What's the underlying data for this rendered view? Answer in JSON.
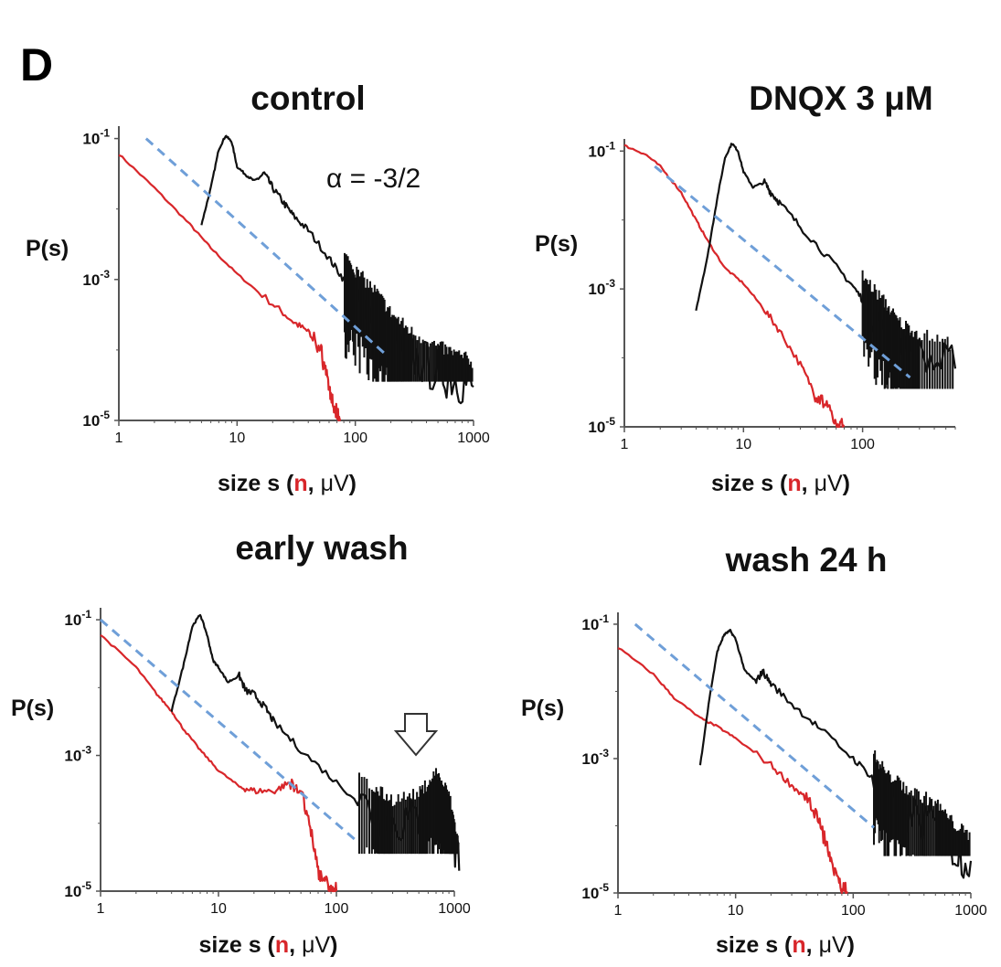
{
  "panel_label": "D",
  "colors": {
    "neurons": "#d8262a",
    "microvolts": "#111111",
    "power_law": "#6f9fd8",
    "axis": "#555555"
  },
  "chart_data": [
    {
      "type": "line",
      "title": "control",
      "ylabel": "P(s)",
      "xlabel_parts": [
        "size s (",
        "n",
        ", ",
        "μV",
        ")"
      ],
      "xscale": "log",
      "yscale": "log",
      "xlim": [
        1,
        1000
      ],
      "ylim": [
        1e-05,
        0.15
      ],
      "xticks": [
        "1",
        "10",
        "100",
        "1000"
      ],
      "yticks": [
        {
          "base": "10",
          "exp": "-1"
        },
        {
          "base": "10",
          "exp": "-3"
        },
        {
          "base": "10",
          "exp": "-5"
        }
      ],
      "annotation": "α = -3/2",
      "series": [
        {
          "key": "n",
          "x": [
            1,
            2,
            4,
            6,
            10,
            20,
            30,
            40,
            50,
            55,
            60,
            65,
            70,
            75
          ],
          "y": [
            0.06,
            0.02,
            0.006,
            0.0028,
            0.0012,
            0.00045,
            0.00025,
            0.00018,
            0.00011,
            6e-05,
            3e-05,
            1.5e-05,
            1.2e-05,
            1e-05
          ]
        },
        {
          "key": "uV",
          "noisy_from": 80,
          "x": [
            5,
            6,
            7,
            8,
            9,
            10,
            12,
            14,
            17,
            20,
            25,
            30,
            40,
            60,
            80,
            100,
            150,
            200,
            300,
            500,
            700,
            1000
          ],
          "y": [
            0.006,
            0.02,
            0.07,
            0.11,
            0.09,
            0.04,
            0.03,
            0.025,
            0.032,
            0.02,
            0.012,
            0.008,
            0.005,
            0.002,
            0.001,
            0.0006,
            0.0003,
            0.00015,
            8e-05,
            5e-05,
            4e-05,
            3e-05
          ]
        },
        {
          "key": "power_law",
          "x": [
            1.7,
            180
          ],
          "y": [
            0.1,
            8.7e-05
          ]
        }
      ]
    },
    {
      "type": "line",
      "title": "DNQX 3 μM",
      "ylabel": "P(s)",
      "xlabel_parts": [
        "size s (",
        "n",
        ", ",
        "μV",
        ")"
      ],
      "xscale": "log",
      "yscale": "log",
      "xlim": [
        1,
        600
      ],
      "ylim": [
        1e-05,
        0.15
      ],
      "xticks": [
        "1",
        "10",
        "100"
      ],
      "yticks": [
        {
          "base": "10",
          "exp": "-1"
        },
        {
          "base": "10",
          "exp": "-3"
        },
        {
          "base": "10",
          "exp": "-5"
        }
      ],
      "annotation": "",
      "series": [
        {
          "key": "n",
          "x": [
            1,
            1.5,
            2,
            3,
            4,
            5,
            7,
            10,
            15,
            20,
            30,
            40,
            50,
            60,
            70
          ],
          "y": [
            0.12,
            0.09,
            0.06,
            0.025,
            0.01,
            0.005,
            0.002,
            0.0012,
            0.0005,
            0.00025,
            8e-05,
            3e-05,
            2e-05,
            1e-05,
            1e-05
          ]
        },
        {
          "key": "uV",
          "noisy_from": 100,
          "x": [
            4,
            5,
            6,
            7,
            8,
            9,
            10,
            12,
            15,
            17,
            20,
            30,
            50,
            80,
            100,
            150,
            200,
            300,
            600
          ],
          "y": [
            0.0005,
            0.003,
            0.02,
            0.08,
            0.13,
            0.1,
            0.05,
            0.03,
            0.035,
            0.025,
            0.018,
            0.008,
            0.003,
            0.0012,
            0.0007,
            0.0003,
            0.00015,
            0.0001,
            7e-05
          ]
        },
        {
          "key": "power_law",
          "x": [
            1.8,
            250
          ],
          "y": [
            0.06,
            5.2e-05
          ]
        }
      ]
    },
    {
      "type": "line",
      "title": "early wash",
      "ylabel": "P(s)",
      "xlabel_parts": [
        "size s (",
        "n",
        ", ",
        "μV",
        ")"
      ],
      "xscale": "log",
      "yscale": "log",
      "xlim": [
        1,
        1000
      ],
      "ylim": [
        1e-05,
        0.15
      ],
      "xticks": [
        "1",
        "10",
        "100",
        "1000"
      ],
      "yticks": [
        {
          "base": "10",
          "exp": "-1"
        },
        {
          "base": "10",
          "exp": "-3"
        },
        {
          "base": "10",
          "exp": "-5"
        }
      ],
      "annotation": "",
      "series": [
        {
          "key": "n",
          "x": [
            1,
            2,
            3,
            4,
            5,
            7,
            10,
            15,
            20,
            30,
            40,
            50,
            60,
            70,
            80,
            90,
            100
          ],
          "y": [
            0.06,
            0.02,
            0.008,
            0.0045,
            0.0025,
            0.0012,
            0.0006,
            0.00035,
            0.0003,
            0.0003,
            0.0004,
            0.0003,
            8e-05,
            2e-05,
            1.5e-05,
            1e-05,
            1e-05
          ]
        },
        {
          "key": "uV",
          "noisy_from": 150,
          "x": [
            4,
            5,
            6,
            7,
            8,
            9,
            10,
            12,
            15,
            17,
            20,
            25,
            30,
            50,
            100,
            200,
            300,
            500,
            700,
            900,
            1100
          ],
          "y": [
            0.0045,
            0.02,
            0.08,
            0.12,
            0.06,
            0.025,
            0.02,
            0.012,
            0.015,
            0.009,
            0.008,
            0.005,
            0.003,
            0.0012,
            0.0004,
            0.00015,
            0.0001,
            0.00012,
            0.00025,
            0.00012,
            2e-05
          ]
        },
        {
          "key": "power_law",
          "x": [
            1,
            150
          ],
          "y": [
            0.1,
            5.4e-05
          ]
        }
      ],
      "marker": "hollow-down-arrow"
    },
    {
      "type": "line",
      "title": "wash 24 h",
      "ylabel": "P(s)",
      "xlabel_parts": [
        "size s (",
        "n",
        ", ",
        "μV",
        ")"
      ],
      "xscale": "log",
      "yscale": "log",
      "xlim": [
        1,
        1000
      ],
      "ylim": [
        1e-05,
        0.15
      ],
      "xticks": [
        "1",
        "10",
        "100",
        "1000"
      ],
      "yticks": [
        {
          "base": "10",
          "exp": "-1"
        },
        {
          "base": "10",
          "exp": "-3"
        },
        {
          "base": "10",
          "exp": "-5"
        }
      ],
      "annotation": "",
      "series": [
        {
          "key": "n",
          "x": [
            1,
            2,
            3,
            5,
            7,
            10,
            20,
            30,
            40,
            50,
            60,
            70,
            80,
            90
          ],
          "y": [
            0.045,
            0.018,
            0.008,
            0.004,
            0.003,
            0.002,
            0.0008,
            0.0004,
            0.00025,
            0.00012,
            5e-05,
            2e-05,
            1.2e-05,
            1e-05
          ]
        },
        {
          "key": "uV",
          "noisy_from": 150,
          "x": [
            5,
            6,
            7,
            8,
            9,
            10,
            12,
            15,
            17,
            20,
            30,
            50,
            100,
            150,
            200,
            300,
            500,
            700,
            1000
          ],
          "y": [
            0.0008,
            0.008,
            0.04,
            0.07,
            0.08,
            0.06,
            0.02,
            0.014,
            0.02,
            0.013,
            0.0065,
            0.003,
            0.001,
            0.0005,
            0.00025,
            0.00015,
            0.0001,
            5e-05,
            3e-05
          ]
        },
        {
          "key": "power_law",
          "x": [
            1.4,
            150
          ],
          "y": [
            0.1,
            9.4e-05
          ]
        }
      ]
    }
  ]
}
